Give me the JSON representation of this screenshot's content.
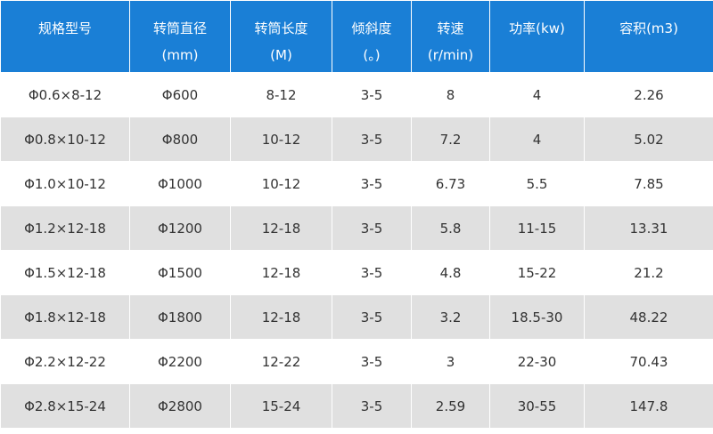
{
  "table": {
    "header": [
      [
        "规格型号"
      ],
      [
        "转筒直径",
        "(mm)"
      ],
      [
        "转筒长度",
        "(M)"
      ],
      [
        "倾斜度",
        "(。)"
      ],
      [
        "转速",
        "(r/min)"
      ],
      [
        "功率(kw)"
      ],
      [
        "容积(m3)"
      ]
    ],
    "rows": [
      [
        "Φ0.6×8-12",
        "Φ600",
        "8-12",
        "3-5",
        "8",
        "4",
        "2.26"
      ],
      [
        "Φ0.8×10-12",
        "Φ800",
        "10-12",
        "3-5",
        "7.2",
        "4",
        "5.02"
      ],
      [
        "Φ1.0×10-12",
        "Φ1000",
        "10-12",
        "3-5",
        "6.73",
        "5.5",
        "7.85"
      ],
      [
        "Φ1.2×12-18",
        "Φ1200",
        "12-18",
        "3-5",
        "5.8",
        "11-15",
        "13.31"
      ],
      [
        "Φ1.5×12-18",
        "Φ1500",
        "12-18",
        "3-5",
        "4.8",
        "15-22",
        "21.2"
      ],
      [
        "Φ1.8×12-18",
        "Φ1800",
        "12-18",
        "3-5",
        "3.2",
        "18.5-30",
        "48.22"
      ],
      [
        "Φ2.2×12-22",
        "Φ2200",
        "12-22",
        "3-5",
        "3",
        "22-30",
        "70.43"
      ],
      [
        "Φ2.8×15-24",
        "Φ2800",
        "15-24",
        "3-5",
        "2.59",
        "30-55",
        "147.8"
      ]
    ]
  }
}
